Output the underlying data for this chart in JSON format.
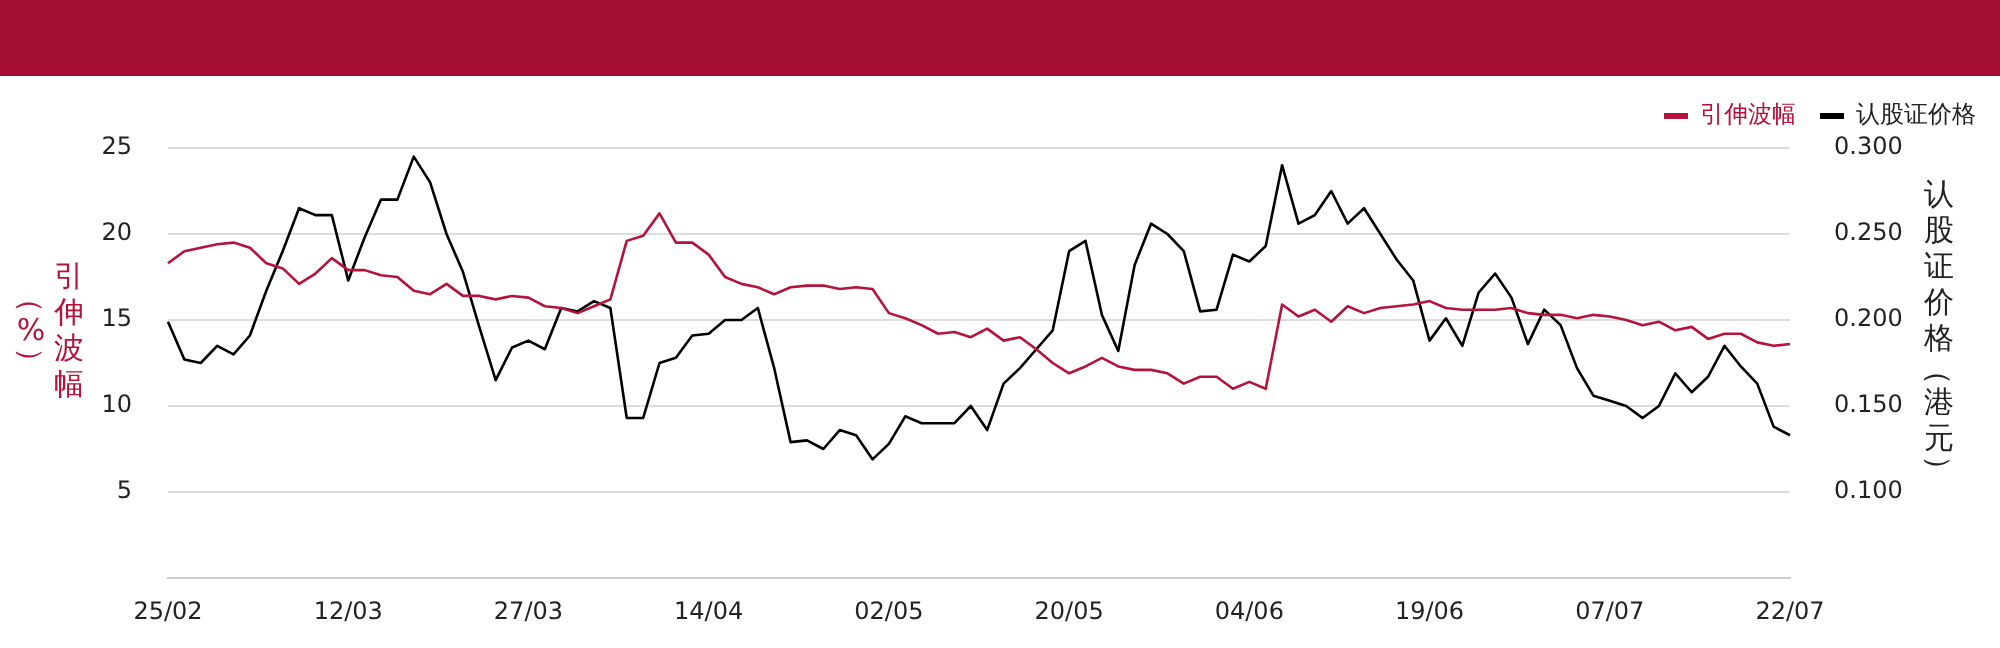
{
  "chart_data": {
    "type": "line",
    "ylabel": "引伸波幅（%）",
    "y2label": "认股证价格（港元）",
    "categories": [
      "25/02",
      null,
      null,
      null,
      null,
      null,
      null,
      null,
      null,
      null,
      null,
      "12/03",
      null,
      null,
      null,
      null,
      null,
      null,
      null,
      null,
      null,
      null,
      "27/03",
      null,
      null,
      null,
      null,
      null,
      null,
      null,
      null,
      null,
      null,
      "14/04",
      null,
      null,
      null,
      null,
      null,
      null,
      null,
      null,
      null,
      null,
      "02/05",
      null,
      null,
      null,
      null,
      null,
      null,
      null,
      null,
      null,
      null,
      "20/05",
      null,
      null,
      null,
      null,
      null,
      null,
      null,
      null,
      null,
      null,
      "04/06",
      null,
      null,
      null,
      null,
      null,
      null,
      null,
      null,
      null,
      null,
      "19/06",
      null,
      null,
      null,
      null,
      null,
      null,
      null,
      null,
      null,
      null,
      "07/07",
      null,
      null,
      null,
      null,
      null,
      null,
      null,
      null,
      null,
      null,
      "22/07"
    ],
    "series": [
      {
        "name": "引伸波幅",
        "color": "#b5123c",
        "values": [
          18.3,
          19.0,
          19.2,
          19.4,
          19.5,
          19.2,
          18.3,
          18.0,
          17.1,
          17.7,
          18.6,
          17.9,
          17.9,
          17.6,
          17.5,
          16.7,
          16.5,
          17.1,
          16.4,
          16.4,
          16.2,
          16.4,
          16.3,
          15.8,
          15.7,
          15.4,
          15.8,
          16.2,
          19.6,
          19.9,
          21.2,
          19.5,
          19.5,
          18.8,
          17.5,
          17.1,
          16.9,
          16.5,
          16.9,
          17.0,
          17.0,
          16.8,
          16.9,
          16.8,
          15.4,
          15.1,
          14.7,
          14.2,
          14.3,
          14.0,
          14.5,
          13.8,
          14.0,
          13.3,
          12.5,
          11.9,
          12.3,
          12.8,
          12.3,
          12.1,
          12.1,
          11.9,
          11.3,
          11.7,
          11.7,
          11.0,
          11.4,
          11.0,
          15.9,
          15.2,
          15.6,
          14.9,
          15.8,
          15.4,
          15.7,
          15.8,
          15.9,
          16.1,
          15.7,
          15.6,
          15.6,
          15.6,
          15.7,
          15.4,
          15.3,
          15.3,
          15.1,
          15.3,
          15.2,
          15.0,
          14.7,
          14.9,
          14.4,
          14.6,
          13.9,
          14.2,
          14.2,
          13.7,
          13.5,
          13.6
        ]
      },
      {
        "name": "认股证价格",
        "color": "#000000",
        "axis": "y2",
        "values": [
          0.199,
          0.177,
          0.175,
          0.185,
          0.18,
          0.191,
          0.217,
          0.24,
          0.265,
          0.261,
          0.261,
          0.223,
          0.248,
          0.27,
          0.27,
          0.295,
          0.28,
          0.25,
          0.228,
          0.196,
          0.165,
          0.184,
          0.188,
          0.183,
          0.207,
          0.205,
          0.211,
          0.207,
          0.143,
          0.143,
          0.175,
          0.178,
          0.191,
          0.192,
          0.2,
          0.2,
          0.207,
          0.172,
          0.129,
          0.13,
          0.125,
          0.136,
          0.133,
          0.119,
          0.128,
          0.144,
          0.14,
          0.14,
          0.14,
          0.15,
          0.136,
          0.163,
          0.172,
          0.183,
          0.194,
          0.24,
          0.246,
          0.203,
          0.182,
          0.232,
          0.256,
          0.25,
          0.24,
          0.205,
          0.206,
          0.238,
          0.234,
          0.243,
          0.29,
          0.256,
          0.261,
          0.275,
          0.256,
          0.265,
          0.25,
          0.235,
          0.223,
          0.188,
          0.201,
          0.185,
          0.216,
          0.227,
          0.213,
          0.186,
          0.206,
          0.197,
          0.172,
          0.156,
          0.153,
          0.15,
          0.143,
          0.15,
          0.169,
          0.158,
          0.167,
          0.185,
          0.173,
          0.163,
          0.138,
          0.133
        ]
      }
    ],
    "ylim": [
      0,
      25
    ],
    "yticks": [
      5,
      10,
      15,
      20,
      25
    ],
    "y2lim": [
      0.05,
      0.3
    ],
    "y2ticks": [
      {
        "value": 0.1,
        "label": "0.100"
      },
      {
        "value": 0.15,
        "label": "0.150"
      },
      {
        "value": 0.2,
        "label": "0.200"
      },
      {
        "value": 0.25,
        "label": "0.250"
      },
      {
        "value": 0.3,
        "label": "0.300"
      }
    ],
    "grid": "y",
    "legend": "top right"
  }
}
